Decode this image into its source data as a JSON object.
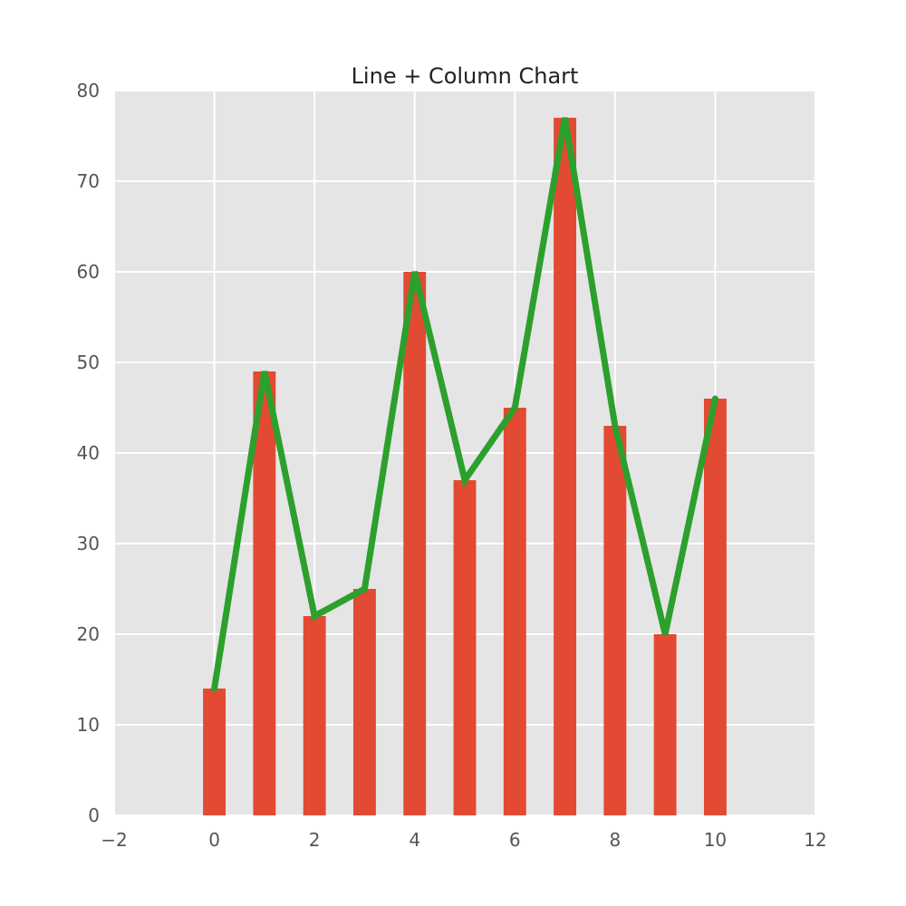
{
  "chart_data": {
    "type": "bar",
    "title": "Line + Column Chart",
    "xlabel": "",
    "ylabel": "",
    "x": [
      0,
      1,
      2,
      3,
      4,
      5,
      6,
      7,
      8,
      9,
      10
    ],
    "xlim": [
      -2,
      12
    ],
    "ylim": [
      0,
      80
    ],
    "xticks": [
      -2,
      0,
      2,
      4,
      6,
      8,
      10,
      12
    ],
    "xtick_labels": [
      "−2",
      "0",
      "2",
      "4",
      "6",
      "8",
      "10",
      "12"
    ],
    "yticks": [
      0,
      10,
      20,
      30,
      40,
      50,
      60,
      70,
      80
    ],
    "ytick_labels": [
      "0",
      "10",
      "20",
      "30",
      "40",
      "50",
      "60",
      "70",
      "80"
    ],
    "grid": true,
    "bar_width": 0.45,
    "series": [
      {
        "type": "bar",
        "values": [
          14,
          49,
          22,
          25,
          60,
          37,
          45,
          77,
          43,
          20,
          46
        ],
        "color": "#e24a33"
      },
      {
        "type": "line",
        "values": [
          14,
          49,
          22,
          25,
          60,
          37,
          45,
          77,
          43,
          20,
          46
        ],
        "color": "#2ca02c"
      }
    ],
    "colors": {
      "plot_background": "#e5e5e5",
      "grid": "#ffffff"
    }
  }
}
